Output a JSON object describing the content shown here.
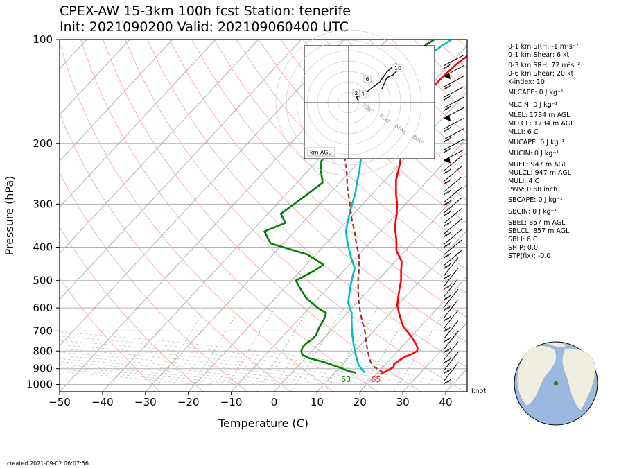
{
  "title": {
    "line1": "CPEX-AW 15-3km  100h fcst  Station: tenerife",
    "line2": "Init: 2021090200  Valid: 2021090604​00 UTC"
  },
  "chart_data": {
    "type": "line",
    "xlabel": "Temperature (C)",
    "ylabel": "Pressure (hPa)",
    "xlim": [
      -50,
      45
    ],
    "ylim": [
      1050,
      100
    ],
    "log_y": true,
    "x_ticks": [
      "−50",
      "−40",
      "−30",
      "−20",
      "−10",
      "0",
      "10",
      "20",
      "30",
      "40"
    ],
    "x_tick_values": [
      -50,
      -40,
      -30,
      -20,
      -10,
      0,
      10,
      20,
      30,
      40
    ],
    "y_ticks": [
      "100",
      "200",
      "300",
      "400",
      "500",
      "600",
      "700",
      "800",
      "900",
      "1000"
    ],
    "y_tick_values": [
      100,
      200,
      300,
      400,
      500,
      600,
      700,
      800,
      900,
      1000
    ],
    "skew": 0.0,
    "series": [
      {
        "color": "#ff0000",
        "style": "solid",
        "points": [
          [
            21,
            935
          ],
          [
            21.5,
            920
          ],
          [
            22,
            905
          ],
          [
            22.5,
            890
          ],
          [
            22,
            875
          ],
          [
            22.2,
            860
          ],
          [
            22.5,
            845
          ],
          [
            23,
            830
          ],
          [
            24,
            815
          ],
          [
            24.5,
            800
          ],
          [
            24,
            785
          ],
          [
            22.5,
            760
          ],
          [
            19.5,
            720
          ],
          [
            16,
            680
          ],
          [
            14,
            650
          ],
          [
            12,
            620
          ],
          [
            10,
            590
          ],
          [
            8.5,
            560
          ],
          [
            7,
            530
          ],
          [
            5.5,
            500
          ],
          [
            3.5,
            470
          ],
          [
            1.5,
            440
          ],
          [
            -2,
            410
          ],
          [
            -4.5,
            380
          ],
          [
            -7.5,
            350
          ],
          [
            -10,
            320
          ],
          [
            -12,
            300
          ],
          [
            -14.5,
            280
          ],
          [
            -17.5,
            255
          ],
          [
            -20,
            230
          ],
          [
            -22.5,
            210
          ],
          [
            -25,
            190
          ],
          [
            -27,
            175
          ],
          [
            -28.5,
            160
          ],
          [
            -29,
            145
          ],
          [
            -29,
            130
          ],
          [
            -28.5,
            118
          ],
          [
            -27.5,
            110
          ],
          [
            -26,
            100
          ]
        ]
      },
      {
        "color": "#00c0c0",
        "style": "solid",
        "points": [
          [
            17,
            925
          ],
          [
            16,
            910
          ],
          [
            15,
            895
          ],
          [
            14,
            880
          ],
          [
            13,
            860
          ],
          [
            12,
            840
          ],
          [
            11,
            820
          ],
          [
            10,
            800
          ],
          [
            9,
            780
          ],
          [
            8,
            760
          ],
          [
            7,
            740
          ],
          [
            6,
            720
          ],
          [
            5,
            700
          ],
          [
            4,
            680
          ],
          [
            3,
            660
          ],
          [
            2,
            640
          ],
          [
            1,
            620
          ],
          [
            -0.5,
            600
          ],
          [
            -2,
            580
          ],
          [
            -3,
            560
          ],
          [
            -4,
            540
          ],
          [
            -5,
            520
          ],
          [
            -6,
            500
          ],
          [
            -7,
            480
          ],
          [
            -8,
            460
          ],
          [
            -10,
            440
          ],
          [
            -12,
            420
          ],
          [
            -14,
            400
          ],
          [
            -16,
            380
          ],
          [
            -18,
            360
          ],
          [
            -19.5,
            340
          ],
          [
            -21,
            320
          ],
          [
            -22.5,
            300
          ],
          [
            -24,
            280
          ],
          [
            -26,
            260
          ],
          [
            -28,
            240
          ],
          [
            -30.5,
            220
          ],
          [
            -33,
            200
          ],
          [
            -35,
            185
          ],
          [
            -37,
            170
          ],
          [
            -38,
            155
          ],
          [
            -38.5,
            140
          ],
          [
            -38.5,
            125
          ],
          [
            -37.5,
            115
          ],
          [
            -36,
            105
          ],
          [
            -35,
            100
          ]
        ]
      },
      {
        "color": "#008000",
        "style": "solid",
        "points": [
          [
            15,
            925
          ],
          [
            13,
            915
          ],
          [
            11,
            900
          ],
          [
            8,
            880
          ],
          [
            5,
            860
          ],
          [
            1,
            840
          ],
          [
            -1.5,
            820
          ],
          [
            -2.5,
            800
          ],
          [
            -3,
            780
          ],
          [
            -3,
            760
          ],
          [
            -2.5,
            740
          ],
          [
            -2.5,
            720
          ],
          [
            -3,
            700
          ],
          [
            -3.5,
            680
          ],
          [
            -4,
            650
          ],
          [
            -5,
            620
          ],
          [
            -8,
            600
          ],
          [
            -13,
            560
          ],
          [
            -17,
            520
          ],
          [
            -19,
            500
          ],
          [
            -17,
            470
          ],
          [
            -16,
            450
          ],
          [
            -22,
            420
          ],
          [
            -33,
            390
          ],
          [
            -37,
            360
          ],
          [
            -34,
            340
          ],
          [
            -37,
            320
          ],
          [
            -36,
            300
          ],
          [
            -35,
            280
          ],
          [
            -34,
            260
          ],
          [
            -37,
            240
          ],
          [
            -39,
            225
          ],
          [
            -39,
            200
          ],
          [
            -39,
            180
          ],
          [
            -40,
            165
          ],
          [
            -43,
            150
          ],
          [
            -45,
            140
          ],
          [
            -43,
            125
          ],
          [
            -41,
            110
          ],
          [
            -39,
            100
          ]
        ]
      },
      {
        "color": "#a03030",
        "style": "dashed",
        "points": [
          [
            21.5,
            925
          ],
          [
            18,
            890
          ],
          [
            16,
            860
          ],
          [
            14,
            820
          ],
          [
            12,
            780
          ],
          [
            10,
            740
          ],
          [
            8,
            700
          ],
          [
            5.5,
            660
          ],
          [
            3,
            620
          ],
          [
            0.5,
            580
          ],
          [
            -2,
            540
          ],
          [
            -4.5,
            500
          ],
          [
            -7,
            460
          ],
          [
            -10,
            420
          ],
          [
            -13,
            390
          ],
          [
            -16,
            360
          ],
          [
            -19.5,
            330
          ],
          [
            -23,
            300
          ],
          [
            -27,
            270
          ],
          [
            -31,
            240
          ],
          [
            -36,
            210
          ],
          [
            -41,
            185
          ],
          [
            -46,
            165
          ],
          [
            -51,
            145
          ],
          [
            -56,
            130
          ],
          [
            -61,
            118
          ],
          [
            -66,
            108
          ]
        ]
      }
    ],
    "annotations": [
      {
        "text": "53",
        "color": "#008000"
      },
      {
        "text": "65",
        "color": "#ff0000"
      }
    ],
    "unit_label": "knot"
  },
  "indices": [
    "0-1 km SRH: -1 m²s⁻²",
    "0-1 km Shear: 6 kt",
    "0-3 km SRH: 72 m²s⁻²",
    "0-6 km Shear: 20 kt",
    "K-index: 10",
    "MLCAPE: 0 J kg⁻¹",
    "MLCIN: 0 J kg⁻¹",
    "MLEL: 1734 m AGL",
    "MLLCL: 1734 m AGL",
    "MLLI: 6 C",
    "MUCAPE: 0 J kg⁻¹",
    "MUCIN: 0 J kg⁻¹",
    "MUEL: 947 m AGL",
    "MULCL: 947 m AGL",
    "MULI: 4 C",
    "PWV: 0.68 inch",
    "SBCAPE: 0 J kg⁻¹",
    "SBCIN: 0 J kg⁻¹",
    "SBEL: 857 m AGL",
    "SBLCL: 857 m AGL",
    "SBLI: 6 C",
    "SHIP: 0.0",
    "STP(fix): -0.0"
  ],
  "hodograph": {
    "ring_labels": [
      "20kt",
      "40kt",
      "60kt",
      "80kt"
    ],
    "height_labels": [
      "2",
      "1",
      "6",
      "10"
    ],
    "footer": "km AGL"
  },
  "created": "created 2021-09-02 06:07:56",
  "colors": {
    "temperature": "#ff0000",
    "dewpoint": "#008000",
    "wetbulb": "#00c0c0",
    "parcel": "#a03030"
  }
}
